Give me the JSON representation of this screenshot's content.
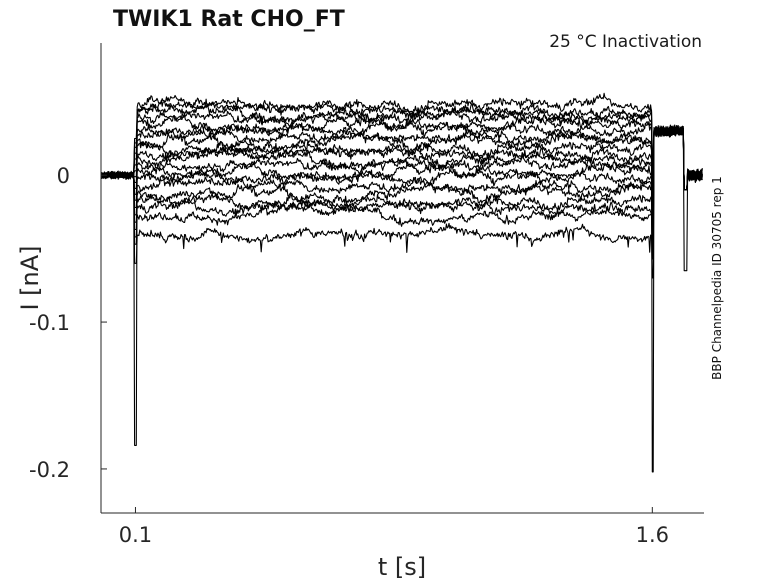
{
  "chart_data": {
    "type": "line",
    "title": "TWIK1  Rat  CHO_FT",
    "subtitle": "25 °C  Inactivation",
    "xlabel": "t [s]",
    "ylabel": "I [nA]",
    "side_note": "BBP Channelpedia ID 30705 rep 1",
    "xlim": [
      0.0,
      1.75
    ],
    "ylim": [
      -0.23,
      0.09
    ],
    "x_ticks": [
      0.1,
      1.6
    ],
    "x_tick_labels": [
      "0.1",
      "1.6"
    ],
    "y_ticks": [
      0,
      -0.1,
      -0.2
    ],
    "y_tick_labels": [
      "0",
      "-0.1",
      "-0.2"
    ],
    "grid": false,
    "legend": "none",
    "trace_color": "#000000",
    "step_start": 0.1,
    "step_end": 1.6,
    "holding_current": 0.0,
    "tail_current": 0.03,
    "step_levels": [
      0.049,
      0.045,
      0.042,
      0.039,
      0.035,
      0.031,
      0.027,
      0.023,
      0.019,
      0.015,
      0.011,
      0.007,
      0.003,
      -0.002,
      -0.007,
      -0.012,
      -0.017,
      -0.022,
      -0.027,
      -0.04
    ],
    "onset_transient_min": -0.184,
    "offset_transient_min": -0.202,
    "tail_transient_min": -0.065
  }
}
